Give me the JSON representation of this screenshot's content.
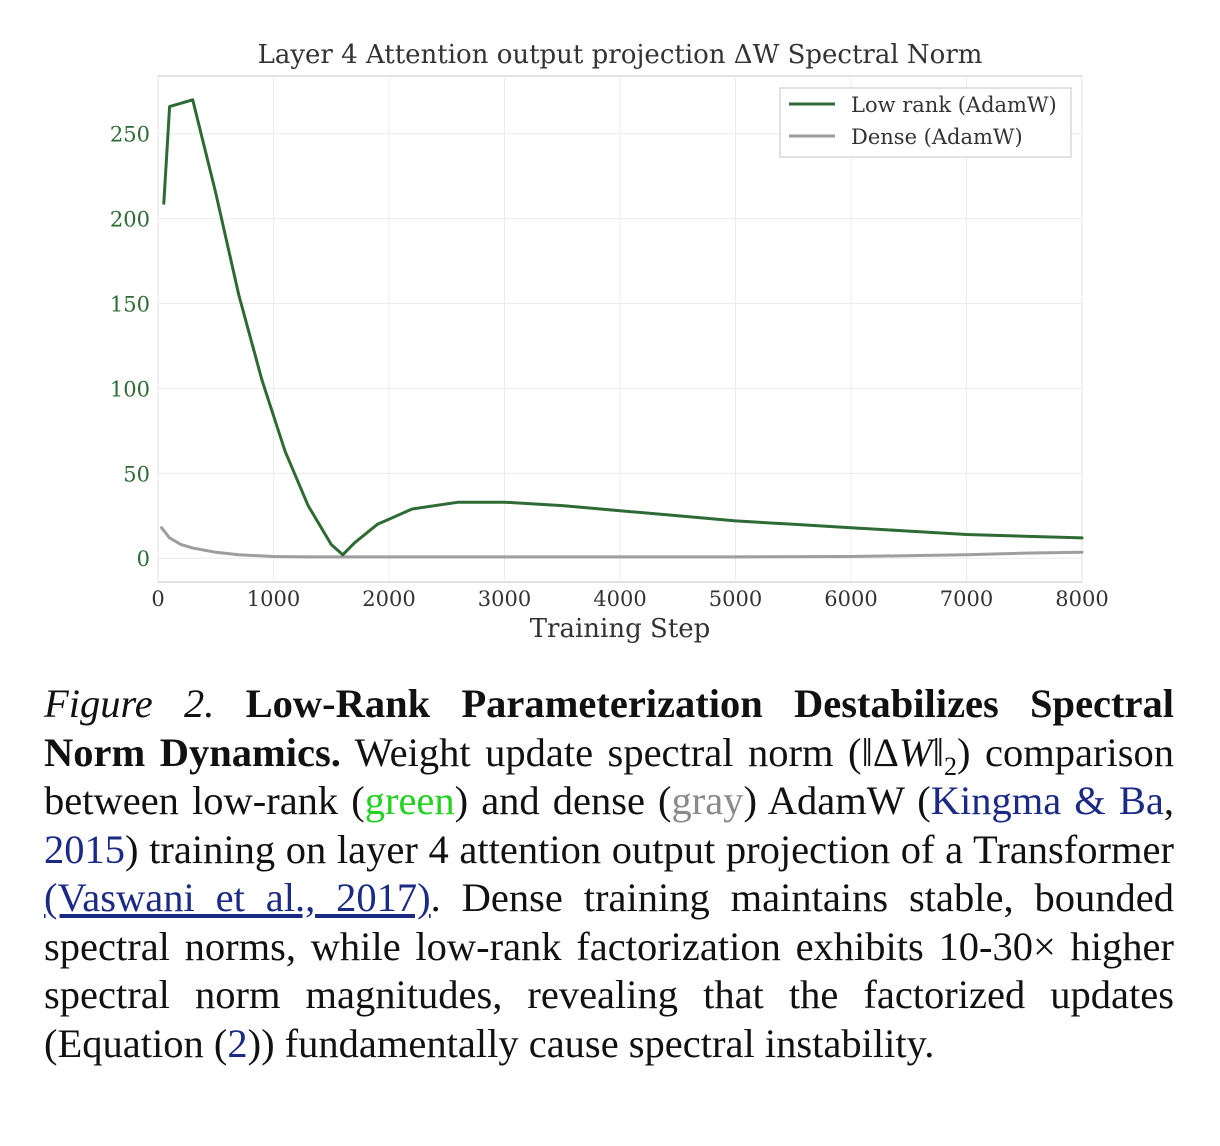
{
  "chart_data": {
    "type": "line",
    "title": "Layer 4 Attention output projection ΔW Spectral Norm",
    "xlabel": "Training Step",
    "ylabel": "",
    "xlim": [
      0,
      8000
    ],
    "ylim": [
      -14,
      284
    ],
    "xticks": [
      0,
      1000,
      2000,
      3000,
      4000,
      5000,
      6000,
      7000,
      8000
    ],
    "yticks": [
      0,
      50,
      100,
      150,
      200,
      250
    ],
    "grid": true,
    "legend_position": "top-right",
    "series": [
      {
        "name": "Low rank (AdamW)",
        "color": "#2e6b34",
        "x": [
          50,
          100,
          300,
          500,
          700,
          900,
          1100,
          1300,
          1500,
          1600,
          1700,
          1900,
          2200,
          2600,
          3000,
          3500,
          4000,
          4500,
          5000,
          5500,
          6000,
          6500,
          7000,
          7500,
          8000
        ],
        "y": [
          209,
          266,
          270,
          215,
          155,
          105,
          63,
          31,
          8,
          2,
          9,
          20,
          29,
          33,
          33,
          31,
          28,
          25,
          22,
          20,
          18,
          16,
          14,
          13,
          12
        ]
      },
      {
        "name": "Dense (AdamW)",
        "color": "#9e9e9e",
        "x": [
          30,
          100,
          200,
          300,
          500,
          700,
          1000,
          1300,
          1600,
          2000,
          3000,
          4000,
          5000,
          6000,
          7000,
          7500,
          8000
        ],
        "y": [
          18,
          12,
          8,
          6,
          3.5,
          2,
          1,
          0.8,
          0.8,
          0.8,
          0.8,
          0.8,
          0.8,
          1,
          2,
          3,
          3.5
        ]
      }
    ]
  },
  "caption": {
    "label": "Figure 2.",
    "title": "Low-Rank Parameterization Destabilizes Spectral Norm Dynamics.",
    "t1": "Weight update spectral norm (",
    "math_norm_open": "‖Δ",
    "math_w": "W",
    "math_norm_close": "‖",
    "math_sub": "2",
    "t2": ") compar­ison between low-rank (",
    "green_word": "green",
    "t3": ") and dense (",
    "gray_word": "gray",
    "t4": ") AdamW (",
    "cite1": "Kingma & Ba",
    "t5": ", ",
    "cite1_year": "2015",
    "t6": ") training on layer 4 attention output projection of a Transformer ",
    "cite2": "(Vaswani et al., 2017)",
    "t7": ". Dense training maintains stable, bounded spectral norms, while low-rank factorization ex­hibits 10-30× higher spectral norm magnitudes, revealing that the factorized updates (Equation (",
    "eq_ref": "2",
    "t8": ")) fundamentally cause spectral instability."
  }
}
